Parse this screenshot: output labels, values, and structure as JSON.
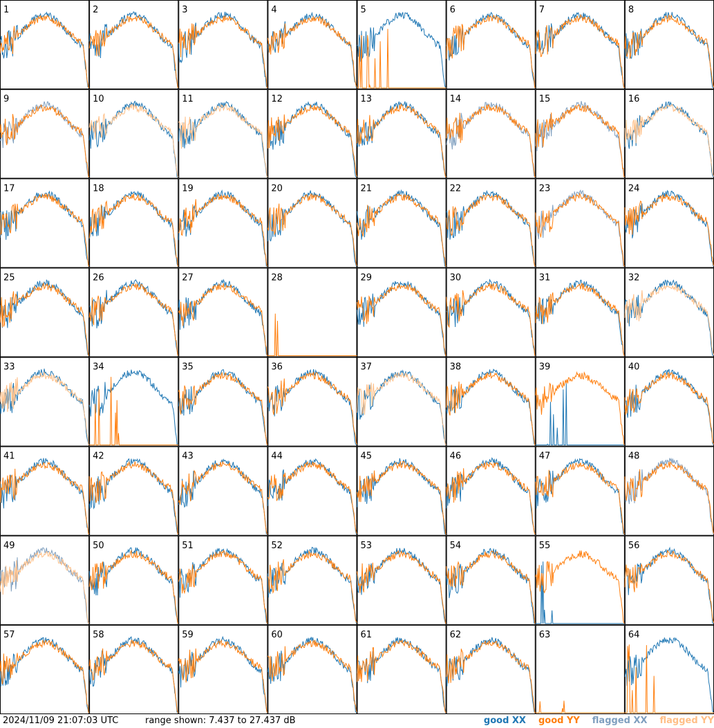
{
  "chart_data": {
    "type": "line",
    "panel_count": 64,
    "grid": "8x8",
    "panels": [
      1,
      2,
      3,
      4,
      5,
      6,
      7,
      8,
      9,
      10,
      11,
      12,
      13,
      14,
      15,
      16,
      17,
      18,
      19,
      20,
      21,
      22,
      23,
      24,
      25,
      26,
      27,
      28,
      29,
      30,
      31,
      32,
      33,
      34,
      35,
      36,
      37,
      38,
      39,
      40,
      41,
      42,
      43,
      44,
      45,
      46,
      47,
      48,
      49,
      50,
      51,
      52,
      53,
      54,
      55,
      56,
      57,
      58,
      59,
      60,
      61,
      62,
      63,
      64
    ],
    "flagged_xx_panels": [
      9,
      14,
      15,
      23,
      48,
      49
    ],
    "flagged_yy_panels": [
      10,
      11,
      16,
      32,
      33,
      37,
      49
    ],
    "missing_xx_panels": [
      28,
      63
    ],
    "dead_yy_panels": [
      5,
      28,
      34,
      63,
      64
    ],
    "dead_xx_panels": [
      39,
      55
    ],
    "series": [
      {
        "name": "good XX",
        "color": "#1f77b4"
      },
      {
        "name": "good YY",
        "color": "#ff7f0e"
      },
      {
        "name": "flagged XX",
        "color": "#7f9fbf"
      },
      {
        "name": "flagged YY",
        "color": "#ffbf87"
      }
    ],
    "range_db": [
      7.437,
      27.437
    ]
  },
  "footer": {
    "timestamp": "2024/11/09 21:07:03 UTC",
    "range_text": "range shown: 7.437 to 27.437 dB",
    "legend": [
      {
        "label": "good XX",
        "color": "#1f77b4"
      },
      {
        "label": "good YY",
        "color": "#ff7f0e"
      },
      {
        "label": "flagged XX",
        "color": "#7f9fbf"
      },
      {
        "label": "flagged YY",
        "color": "#ffbf87"
      }
    ]
  }
}
